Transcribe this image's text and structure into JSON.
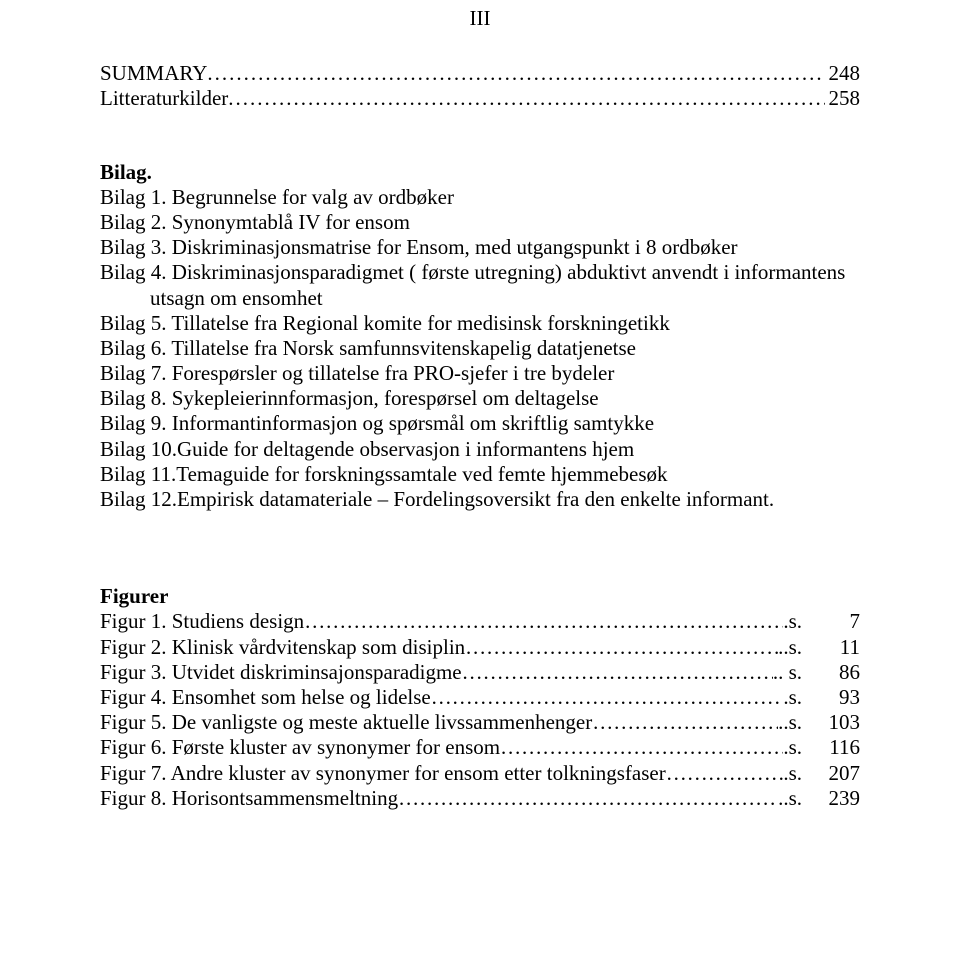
{
  "pageNumberTop": "III",
  "tocSummary": {
    "label": "SUMMARY",
    "page": "248"
  },
  "tocLitt": {
    "label": "Litteraturkilder",
    "page": "258"
  },
  "bilagHeading": "Bilag.",
  "bilag": [
    "Bilag  1. Begrunnelse for valg av ordbøker",
    "Bilag  2. Synonymtablå IV for ensom",
    "Bilag  3. Diskriminasjonsmatrise for Ensom, med utgangspunkt i 8 ordbøker",
    "Bilag  4. Diskriminasjonsparadigmet ( første utregning) abduktivt anvendt i informantens",
    "utsagn  om ensomhet",
    "Bilag  5. Tillatelse fra Regional komite for medisinsk forskningetikk",
    "Bilag  6. Tillatelse fra Norsk samfunnsvitenskapelig datatjenetse",
    "Bilag  7. Forespørsler og tillatelse fra PRO-sjefer i tre bydeler",
    "Bilag  8. Sykepleierinnformasjon, forespørsel om deltagelse",
    "Bilag  9. Informantinformasjon og spørsmål om skriftlig samtykke",
    "Bilag 10.Guide for deltagende observasjon i informantens hjem",
    "Bilag 11.Temaguide for forskningssamtale ved femte hjemmebesøk",
    "Bilag 12.Empirisk datamateriale – Fordelingsoversikt fra den enkelte informant."
  ],
  "bilagIndentIndex": 4,
  "figurerHeading": "Figurer",
  "figurer": [
    {
      "label": "Figur 1. Studiens design",
      "suffix": ".s.",
      "page": "7"
    },
    {
      "label": "Figur 2. Klinisk vårdvitenskap som disiplin",
      "suffix": "..s.",
      "page": "11"
    },
    {
      "label": "Figur 3. Utvidet diskriminsajonsparadigme",
      "suffix": ".. s.",
      "page": "86"
    },
    {
      "label": "Figur 4. Ensomhet som helse og lidelse",
      "suffix": ".s.",
      "page": "93"
    },
    {
      "label": "Figur 5. De vanligste og meste aktuelle livssammenhenger",
      "suffix": "..s.",
      "page": "103"
    },
    {
      "label": "Figur 6. Første kluster av synonymer for ensom",
      "suffix": ".s.",
      "page": "116"
    },
    {
      "label": "Figur 7. Andre kluster av synonymer for ensom etter tolkningsfaser",
      "suffix": ".s.",
      "page": "207"
    },
    {
      "label": "Figur 8. Horisontsammensmeltning",
      "suffix": "..s.",
      "page": "239"
    }
  ],
  "dotFill": "..................................................................................................................................................................",
  "figDotFill": "……………………………………………………………………………………………………",
  "colors": {
    "text": "#000000",
    "background": "#ffffff"
  },
  "fontFamily": "Times New Roman",
  "fontSizePt": 16
}
